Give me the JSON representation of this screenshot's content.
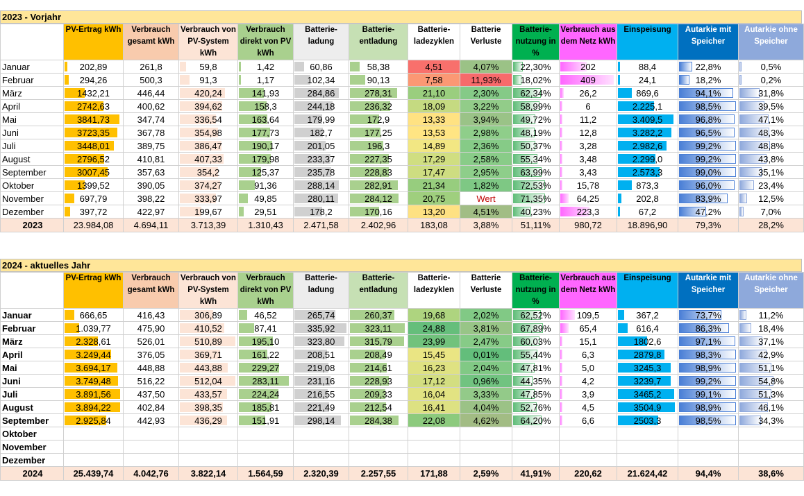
{
  "section_2023": {
    "title": "2023 - Vorjahr",
    "total_label": "2023",
    "rows": [
      [
        "Januar",
        "202,89",
        "261,8",
        "59,8",
        "1,42",
        "60,86",
        "58,38",
        "4,51",
        "4,07%",
        "22,30%",
        "202",
        "88,4",
        "22,8%",
        "0,5%"
      ],
      [
        "Februar",
        "294,26",
        "500,3",
        "91,3",
        "1,17",
        "102,34",
        "90,13",
        "7,58",
        "11,93%",
        "18,02%",
        "409",
        "24,1",
        "18,2%",
        "0,2%"
      ],
      [
        "März",
        "1432,21",
        "446,44",
        "420,24",
        "141,93",
        "284,86",
        "278,31",
        "21,10",
        "2,30%",
        "62,34%",
        "26,2",
        "869,6",
        "94,1%",
        "31,8%"
      ],
      [
        "April",
        "2742,63",
        "400,62",
        "394,62",
        "158,3",
        "244,18",
        "236,32",
        "18,09",
        "3,22%",
        "58,99%",
        "6",
        "2.225,1",
        "98,5%",
        "39,5%"
      ],
      [
        "Mai",
        "3841,73",
        "347,74",
        "336,54",
        "163,64",
        "179,99",
        "172,9",
        "13,33",
        "3,94%",
        "49,72%",
        "11,2",
        "3.409,5",
        "96,8%",
        "47,1%"
      ],
      [
        "Juni",
        "3723,35",
        "367,78",
        "354,98",
        "177,73",
        "182,7",
        "177,25",
        "13,53",
        "2,98%",
        "48,19%",
        "12,8",
        "3.282,2",
        "96,5%",
        "48,3%"
      ],
      [
        "Juli",
        "3448,01",
        "389,75",
        "386,47",
        "190,17",
        "201,05",
        "196,3",
        "14,89",
        "2,36%",
        "50,37%",
        "3,28",
        "2.982,6",
        "99,2%",
        "48,8%"
      ],
      [
        "August",
        "2796,52",
        "410,81",
        "407,33",
        "179,98",
        "233,37",
        "227,35",
        "17,29",
        "2,58%",
        "55,34%",
        "3,48",
        "2.299,0",
        "99,2%",
        "43,8%"
      ],
      [
        "September",
        "3007,45",
        "357,63",
        "354,2",
        "125,37",
        "235,78",
        "228,83",
        "17,47",
        "2,95%",
        "63,99%",
        "3,43",
        "2.573,3",
        "99,0%",
        "35,1%"
      ],
      [
        "Oktober",
        "1399,52",
        "390,05",
        "374,27",
        "91,36",
        "288,14",
        "282,91",
        "21,34",
        "1,82%",
        "72,53%",
        "15,78",
        "873,3",
        "96,0%",
        "23,4%"
      ],
      [
        "November",
        "697,79",
        "398,22",
        "333,97",
        "49,85",
        "280,11",
        "284,12",
        "20,75",
        "Wert",
        "71,35%",
        "64,25",
        "202,8",
        "83,9%",
        "12,5%"
      ],
      [
        "Dezember",
        "397,72",
        "422,97",
        "199,67",
        "29,51",
        "178,2",
        "170,16",
        "13,20",
        "4,51%",
        "40,23%",
        "223,3",
        "67,2",
        "47,2%",
        "7,0%"
      ]
    ],
    "totals": [
      "23.984,08",
      "4.694,11",
      "3.713,39",
      "1.310,43",
      "2.471,58",
      "2.402,96",
      "183,08",
      "3,88%",
      "51,11%",
      "980,72",
      "18.896,90",
      "79,3%",
      "28,2%"
    ]
  },
  "section_2024": {
    "title": "2024 - aktuelles Jahr",
    "total_label": "2024",
    "rows": [
      [
        "Januar",
        "666,65",
        "416,43",
        "306,89",
        "46,52",
        "265,74",
        "260,37",
        "19,68",
        "2,02%",
        "62,52%",
        "109,5",
        "367,2",
        "73,7%",
        "11,2%"
      ],
      [
        "Februar",
        "1.039,77",
        "475,90",
        "410,52",
        "87,41",
        "335,92",
        "323,11",
        "24,88",
        "3,81%",
        "67,89%",
        "65,4",
        "616,4",
        "86,3%",
        "18,4%"
      ],
      [
        "März",
        "2.328,61",
        "526,01",
        "510,89",
        "195,10",
        "323,80",
        "315,79",
        "23,99",
        "2,47%",
        "60,03%",
        "15,1",
        "1802,6",
        "97,1%",
        "37,1%"
      ],
      [
        "April",
        "3.249,44",
        "376,05",
        "369,71",
        "161,22",
        "208,51",
        "208,49",
        "15,45",
        "0,01%",
        "55,44%",
        "6,3",
        "2879,8",
        "98,3%",
        "42,9%"
      ],
      [
        "Mai",
        "3.694,17",
        "448,88",
        "443,88",
        "229,27",
        "219,08",
        "214,61",
        "16,23",
        "2,04%",
        "47,81%",
        "5,0",
        "3245,3",
        "98,9%",
        "51,1%"
      ],
      [
        "Juni",
        "3.749,48",
        "516,22",
        "512,04",
        "283,11",
        "231,16",
        "228,93",
        "17,12",
        "0,96%",
        "44,35%",
        "4,2",
        "3239,7",
        "99,2%",
        "54,8%"
      ],
      [
        "Juli",
        "3.891,56",
        "437,50",
        "433,57",
        "224,24",
        "216,55",
        "209,33",
        "16,04",
        "3,33%",
        "47,85%",
        "3,9",
        "3465,2",
        "99,1%",
        "51,3%"
      ],
      [
        "August",
        "3.894,22",
        "402,84",
        "398,35",
        "185,81",
        "221,49",
        "212,54",
        "16,41",
        "4,04%",
        "52,76%",
        "4,5",
        "3504,9",
        "98,9%",
        "46,1%"
      ],
      [
        "September",
        "2.925,84",
        "442,93",
        "436,29",
        "151,91",
        "298,14",
        "284,38",
        "22,08",
        "4,62%",
        "64,20%",
        "6,6",
        "2503,3",
        "98,5%",
        "34,3%"
      ],
      [
        "Oktober",
        "",
        "",
        "",
        "",
        "",
        "",
        "",
        "",
        "",
        "",
        "",
        "",
        ""
      ],
      [
        "November",
        "",
        "",
        "",
        "",
        "",
        "",
        "",
        "",
        "",
        "",
        "",
        "",
        ""
      ],
      [
        "Dezember",
        "",
        "",
        "",
        "",
        "",
        "",
        "",
        "",
        "",
        "",
        "",
        "",
        ""
      ]
    ],
    "totals": [
      "25.439,74",
      "4.042,76",
      "3.822,14",
      "1.564,59",
      "2.320,39",
      "2.257,55",
      "171,88",
      "2,59%",
      "41,91%",
      "220,62",
      "21.624,42",
      "94,4%",
      "38,6%"
    ]
  },
  "headers": [
    {
      "label": "PV-Ertrag kWh",
      "bg": "#ffc000",
      "fg": "#000000"
    },
    {
      "label": "Verbrauch gesamt  kWh",
      "bg": "#f8cbad",
      "fg": "#000000"
    },
    {
      "label": "Verbrauch von PV-System kWh",
      "bg": "#fce4d6",
      "fg": "#000000"
    },
    {
      "label": "Verbrauch direkt von PV kWh",
      "bg": "#a9d08e",
      "fg": "#000000"
    },
    {
      "label": "Batterie-ladung",
      "bg": "#ededed",
      "fg": "#000000"
    },
    {
      "label": "Batterie-entladung",
      "bg": "#c6e0b4",
      "fg": "#000000"
    },
    {
      "label": "Batterie-ladezyklen",
      "bg": "#ffffff",
      "fg": "#000000"
    },
    {
      "label": "Batterie Verluste",
      "bg": "#ffffff",
      "fg": "#000000"
    },
    {
      "label": "Batterie-nutzung in %",
      "bg": "#00b050",
      "fg": "#000000"
    },
    {
      "label": "Verbrauch aus dem Netz kWh",
      "bg": "#ff66ff",
      "fg": "#000000"
    },
    {
      "label": "Einspeisung",
      "bg": "#00b0f0",
      "fg": "#000000"
    },
    {
      "label": "Autarkie mit Speicher",
      "bg": "#0070c0",
      "fg": "#ffffff"
    },
    {
      "label": "Autarkie ohne Speicher",
      "bg": "#8ea9db",
      "fg": "#ffffff"
    }
  ],
  "bar_colors": {
    "pv": "#ffc000",
    "verbrauch_pv": "#fce4d6",
    "direkt": "#a9d08e",
    "ladung": "#d0d0d0",
    "entladung": "#a9d08e",
    "nutzung": "#63be7b",
    "netz": "#ff66ff",
    "einspeisung": "#00b0f0"
  }
}
